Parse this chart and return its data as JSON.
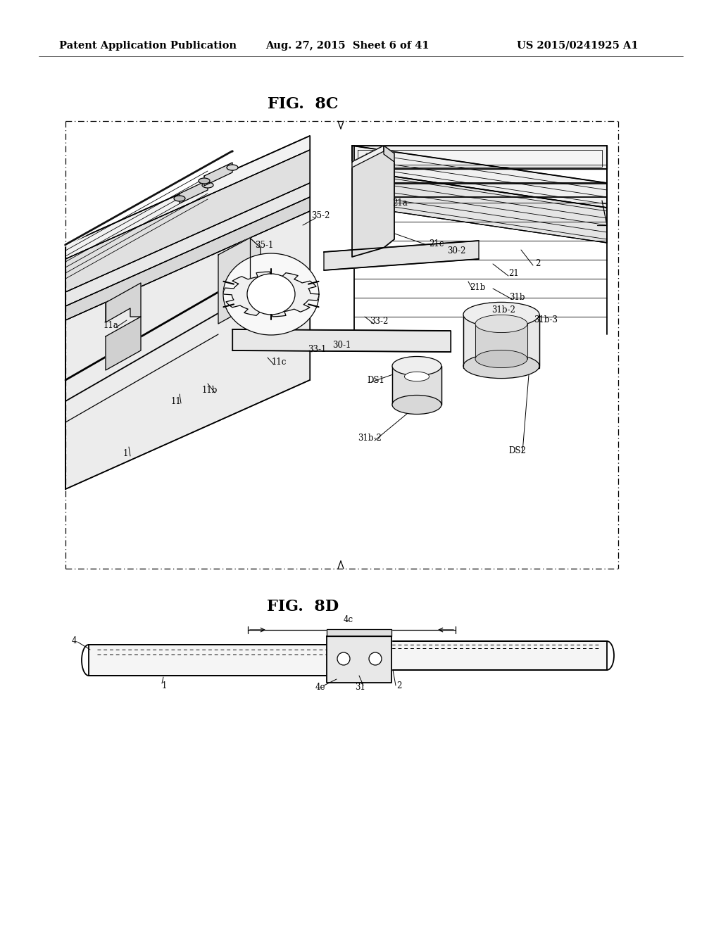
{
  "bg": "#ffffff",
  "hdr_left": "Patent Application Publication",
  "hdr_mid": "Aug. 27, 2015  Sheet 6 of 41",
  "hdr_right": "US 2015/0241925 A1",
  "title_8c": "FIG.  8C",
  "title_8d": "FIG.  8D",
  "black": "#000000",
  "lw_hair": 0.6,
  "lw_thin": 0.9,
  "lw_med": 1.3,
  "lw_thick": 2.0
}
